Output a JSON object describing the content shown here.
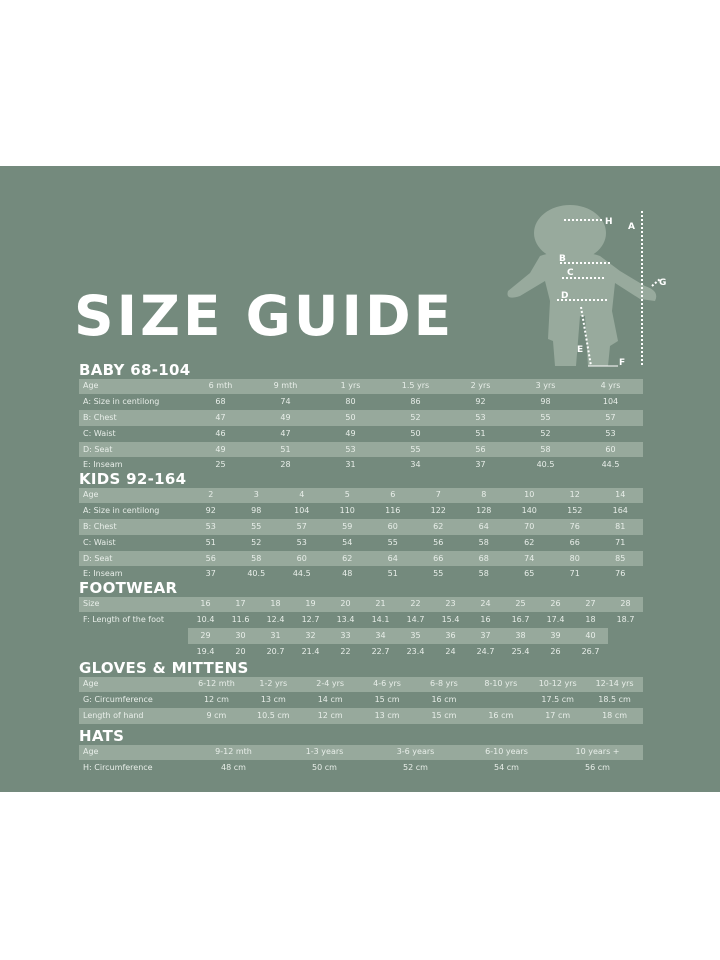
{
  "title": "SIZE GUIDE",
  "figure_labels": [
    "H",
    "A",
    "B",
    "C",
    "G",
    "D",
    "E",
    "F"
  ],
  "colors": {
    "background": "#748a7d",
    "stripe": "#97a99c",
    "text": "#ffffff",
    "silhouette": "#98aa9d"
  },
  "baby": {
    "heading": "BABY 68-104",
    "rows": [
      [
        "Age",
        "6 mth",
        "9 mth",
        "1 yrs",
        "1.5 yrs",
        "2 yrs",
        "3 yrs",
        "4 yrs"
      ],
      [
        "A: Size in centilong",
        "68",
        "74",
        "80",
        "86",
        "92",
        "98",
        "104"
      ],
      [
        "B: Chest",
        "47",
        "49",
        "50",
        "52",
        "53",
        "55",
        "57"
      ],
      [
        "C: Waist",
        "46",
        "47",
        "49",
        "50",
        "51",
        "52",
        "53"
      ],
      [
        "D: Seat",
        "49",
        "51",
        "53",
        "55",
        "56",
        "58",
        "60"
      ],
      [
        "E: Inseam",
        "25",
        "28",
        "31",
        "34",
        "37",
        "40.5",
        "44.5"
      ]
    ]
  },
  "kids": {
    "heading": "KIDS 92-164",
    "rows": [
      [
        "Age",
        "2",
        "3",
        "4",
        "5",
        "6",
        "7",
        "8",
        "10",
        "12",
        "14"
      ],
      [
        "A: Size in centilong",
        "92",
        "98",
        "104",
        "110",
        "116",
        "122",
        "128",
        "140",
        "152",
        "164"
      ],
      [
        "B: Chest",
        "53",
        "55",
        "57",
        "59",
        "60",
        "62",
        "64",
        "70",
        "76",
        "81"
      ],
      [
        "C: Waist",
        "51",
        "52",
        "53",
        "54",
        "55",
        "56",
        "58",
        "62",
        "66",
        "71"
      ],
      [
        "D: Seat",
        "56",
        "58",
        "60",
        "62",
        "64",
        "66",
        "68",
        "74",
        "80",
        "85"
      ],
      [
        "E: Inseam",
        "37",
        "40.5",
        "44.5",
        "48",
        "51",
        "55",
        "58",
        "65",
        "71",
        "76"
      ]
    ]
  },
  "footwear": {
    "heading": "FOOTWEAR",
    "rows": [
      [
        "Size",
        "16",
        "17",
        "18",
        "19",
        "20",
        "21",
        "22",
        "23",
        "24",
        "25",
        "26",
        "27",
        "28"
      ],
      [
        "F: Length of the foot",
        "10.4",
        "11.6",
        "12.4",
        "12.7",
        "13.4",
        "14.1",
        "14.7",
        "15.4",
        "16",
        "16.7",
        "17.4",
        "18",
        "18.7"
      ],
      [
        "",
        "29",
        "30",
        "31",
        "32",
        "33",
        "34",
        "35",
        "36",
        "37",
        "38",
        "39",
        "40",
        ""
      ],
      [
        "",
        "19.4",
        "20",
        "20.7",
        "21.4",
        "22",
        "22.7",
        "23.4",
        "24",
        "24.7",
        "25.4",
        "26",
        "26.7",
        ""
      ]
    ]
  },
  "gloves": {
    "heading": "GLOVES & MITTENS",
    "rows": [
      [
        "Age",
        "6-12 mth",
        "1-2 yrs",
        "2-4 yrs",
        "4-6 yrs",
        "6-8 yrs",
        "8-10 yrs",
        "10-12 yrs",
        "12-14 yrs"
      ],
      [
        "G: Circumference",
        "12 cm",
        "13 cm",
        "14 cm",
        "15 cm",
        "16 cm",
        "",
        "17.5 cm",
        "18.5 cm"
      ],
      [
        "Length of hand",
        "9 cm",
        "10.5 cm",
        "12 cm",
        "13 cm",
        "15 cm",
        "16 cm",
        "17 cm",
        "18 cm"
      ]
    ]
  },
  "hats": {
    "heading": "HATS",
    "rows": [
      [
        "Age",
        "9-12 mth",
        "1-3 years",
        "3-6 years",
        "6-10 years",
        "10 years +"
      ],
      [
        "H: Circumference",
        "48 cm",
        "50 cm",
        "52 cm",
        "54 cm",
        "56 cm"
      ]
    ]
  }
}
